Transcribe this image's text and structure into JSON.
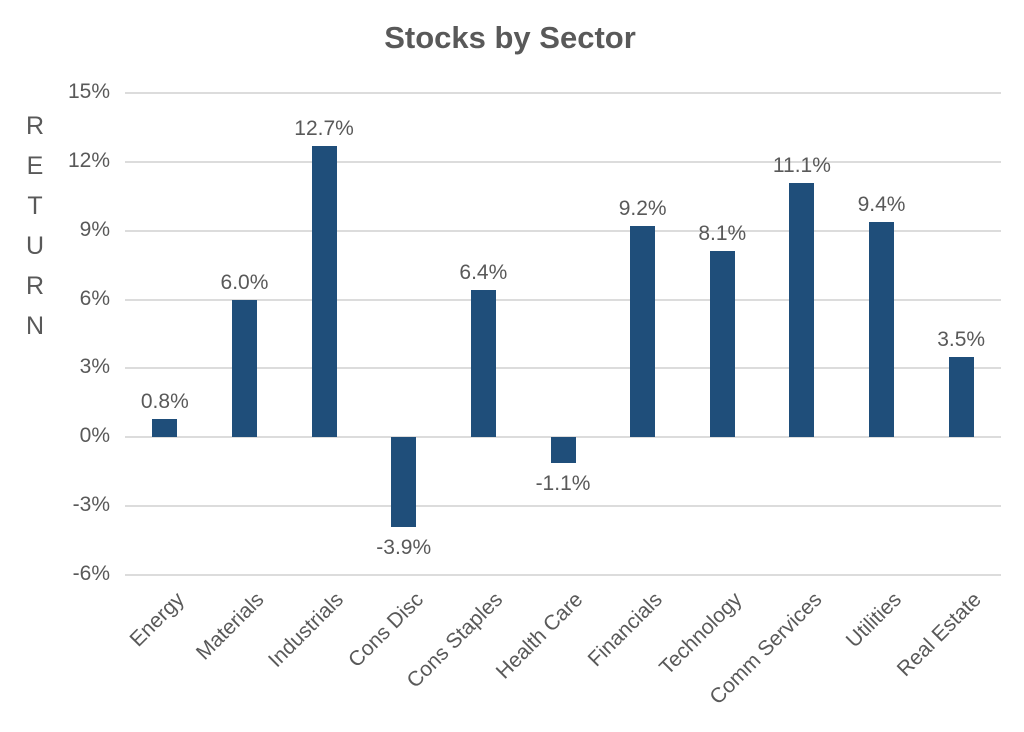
{
  "title": "Stocks by Sector",
  "colors": {
    "bar": "#1f4e7a",
    "text": "#595959",
    "gridline": "#dcdcdc",
    "background": "#ffffff"
  },
  "chart_data": {
    "type": "bar",
    "title": "Stocks by Sector",
    "ylabel": "RETURN",
    "xlabel": "",
    "categories": [
      "Energy",
      "Materials",
      "Industrials",
      "Cons Disc",
      "Cons Staples",
      "Health Care",
      "Financials",
      "Technology",
      "Comm Services",
      "Utilities",
      "Real Estate"
    ],
    "values": [
      0.8,
      6.0,
      12.7,
      -3.9,
      6.4,
      -1.1,
      9.2,
      8.1,
      11.1,
      9.4,
      3.5
    ],
    "data_labels": [
      "0.8%",
      "6.0%",
      "12.7%",
      "-3.9%",
      "6.4%",
      "-1.1%",
      "9.2%",
      "8.1%",
      "11.1%",
      "9.4%",
      "3.5%"
    ],
    "ylim": [
      -6,
      15
    ],
    "ytick_step": 3,
    "yticks": [
      15,
      12,
      9,
      6,
      3,
      0,
      -3,
      -6
    ],
    "ytick_labels": [
      "15%",
      "12%",
      "9%",
      "6%",
      "3%",
      "0%",
      "-3%",
      "-6%"
    ],
    "grid": true,
    "legend": false,
    "y_axis_title_letters": [
      "R",
      "E",
      "T",
      "U",
      "R",
      "N"
    ]
  }
}
